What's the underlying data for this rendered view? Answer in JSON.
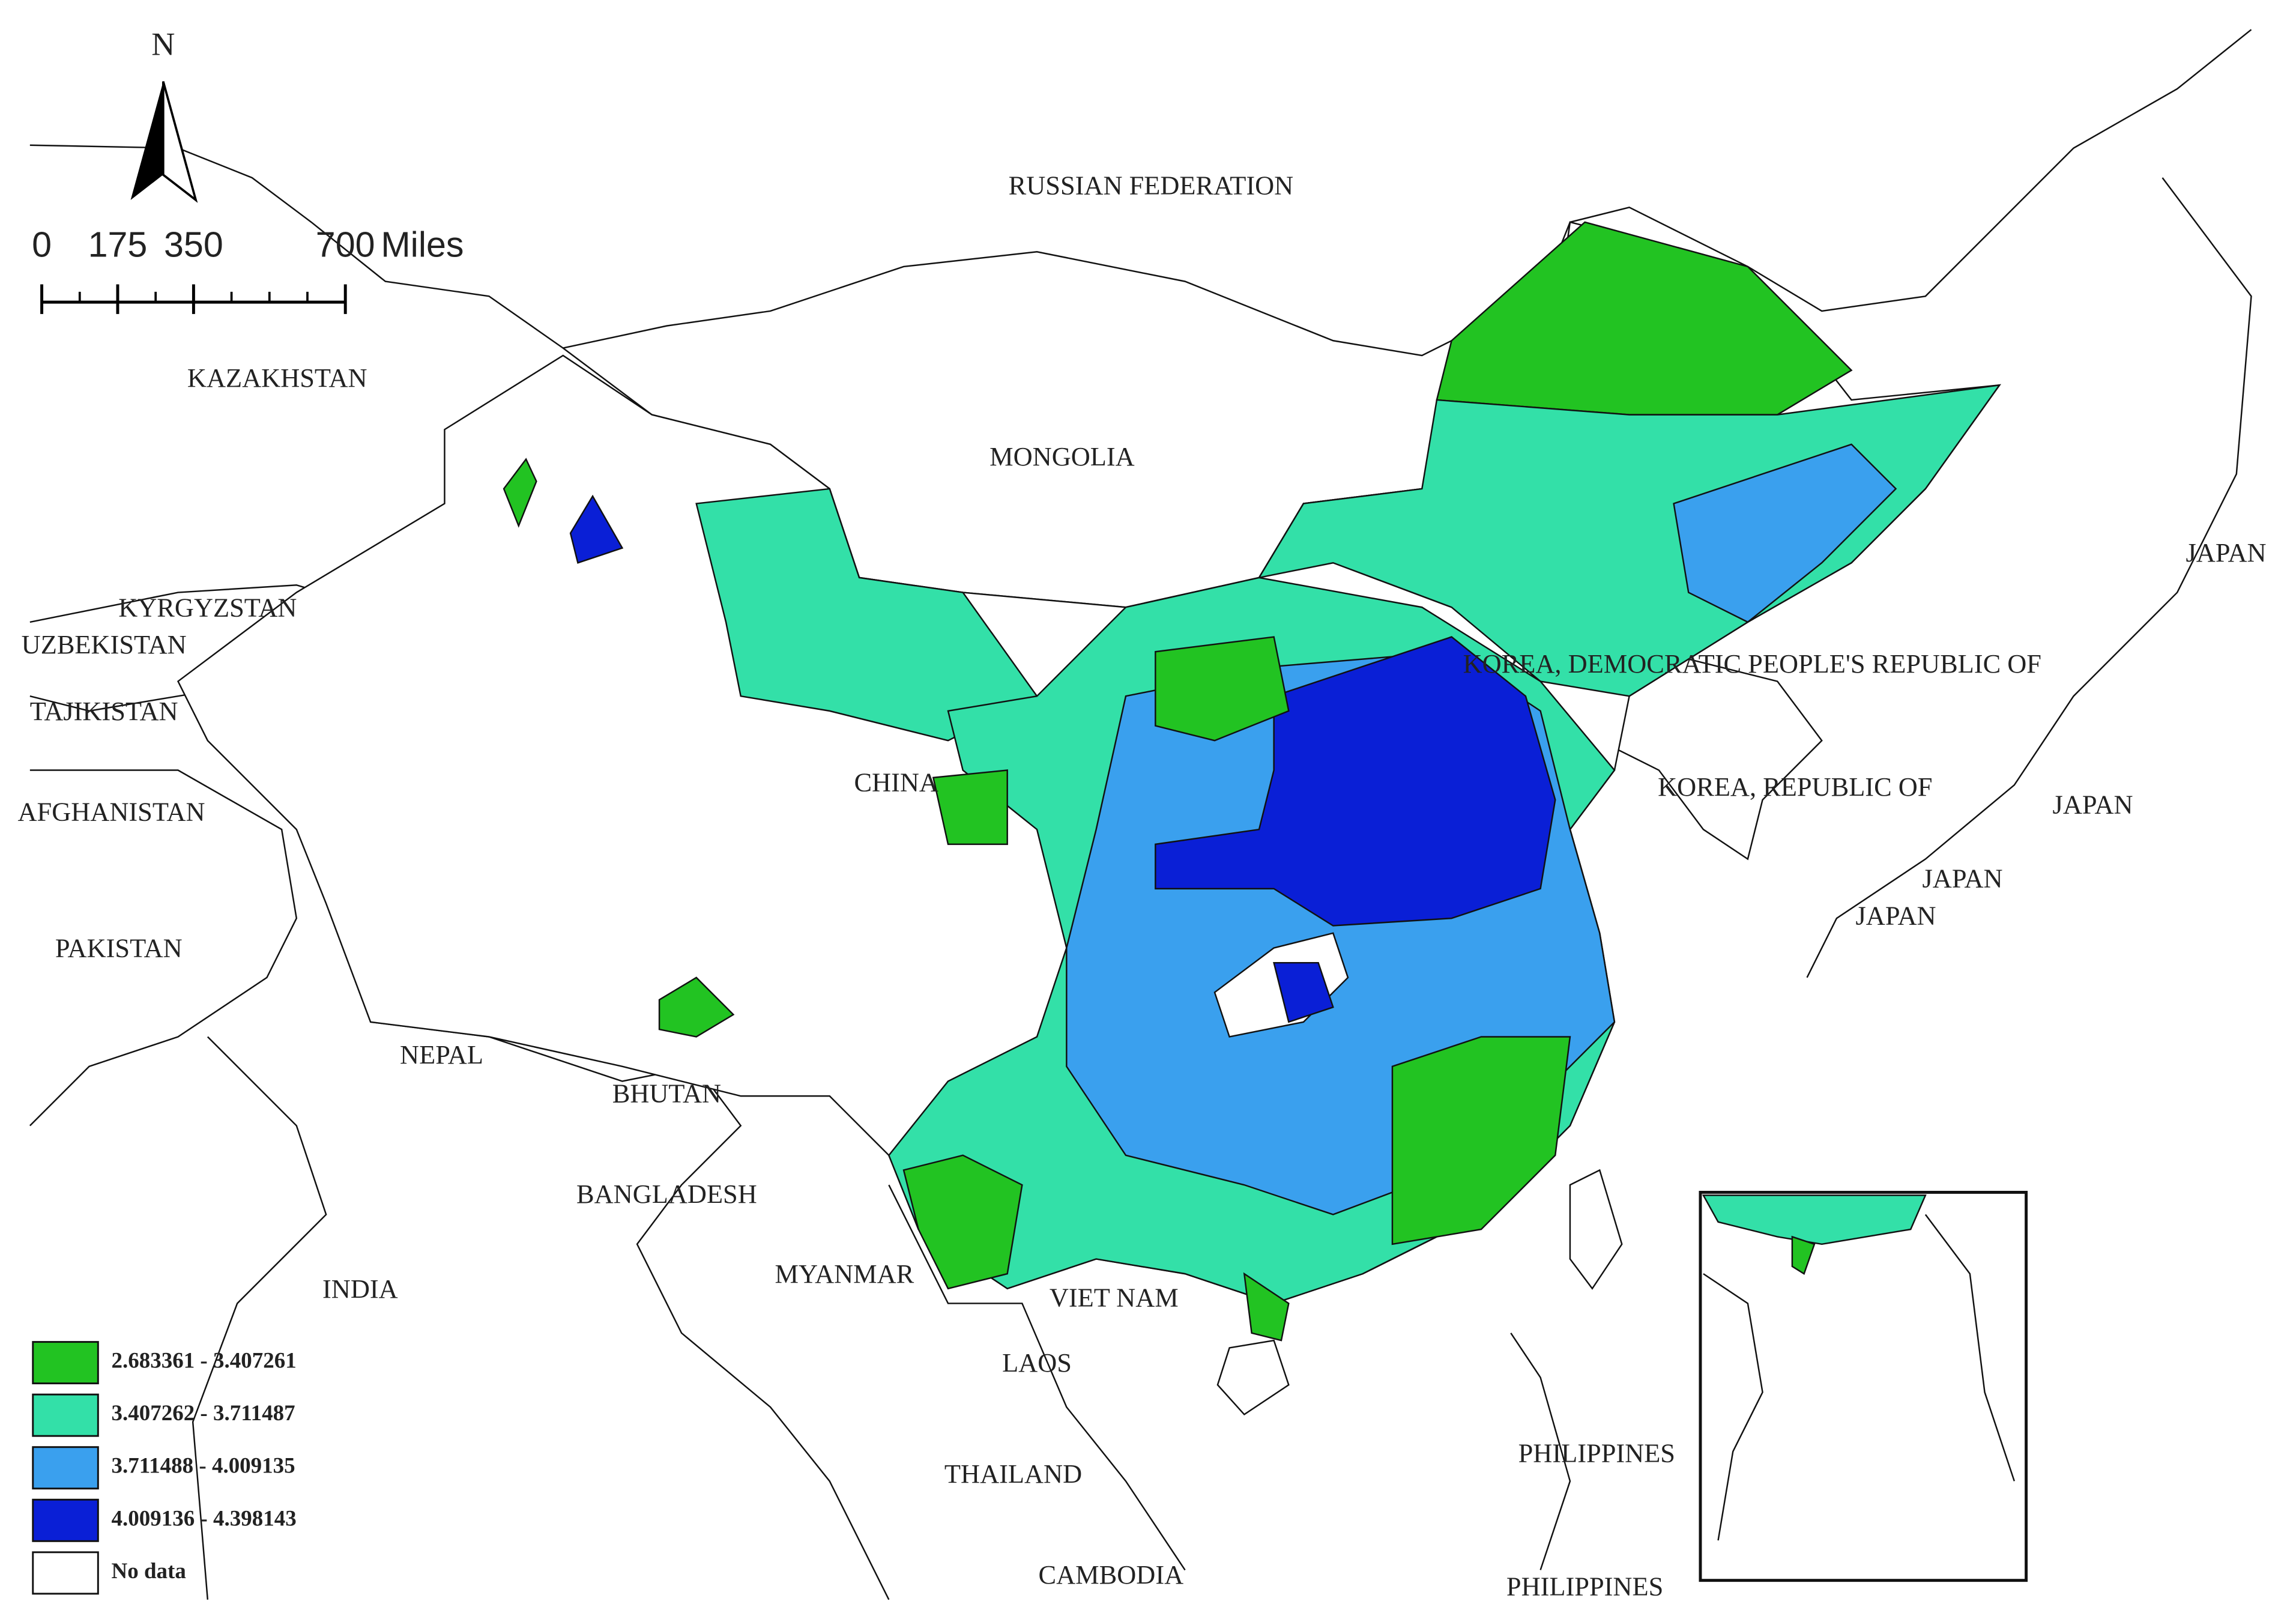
{
  "map": {
    "north_label": "N",
    "scale_bar": {
      "ticks": [
        0,
        175,
        350,
        700
      ],
      "unit": "Miles"
    },
    "place_labels": [
      "RUSSIAN FEDERATION",
      "KAZAKHSTAN",
      "MONGOLIA",
      "KYRGYZSTAN",
      "UZBEKISTAN",
      "TAJIKISTAN",
      "AFGHANISTAN",
      "PAKISTAN",
      "CHINA",
      "NEPAL",
      "BHUTAN",
      "BANGLADESH",
      "INDIA",
      "MYANMAR",
      "VIET NAM",
      "LAOS",
      "THAILAND",
      "CAMBODIA",
      "PHILIPPINES",
      "PHILIPPINES",
      "KOREA, DEMOCRATIC PEOPLE'S REPUBLIC OF",
      "KOREA, REPUBLIC OF",
      "JAPAN",
      "JAPAN",
      "JAPAN",
      "JAPAN"
    ],
    "legend": [
      {
        "label": "2.683361 - 3.407261",
        "color": "#22c322"
      },
      {
        "label": "3.407262 - 3.711487",
        "color": "#33e0a8"
      },
      {
        "label": "3.711488 - 4.009135",
        "color": "#3aa0ee"
      },
      {
        "label": "4.009136 - 4.398143",
        "color": "#0a1fd6"
      },
      {
        "label": "No data",
        "color": "#ffffff"
      }
    ]
  }
}
